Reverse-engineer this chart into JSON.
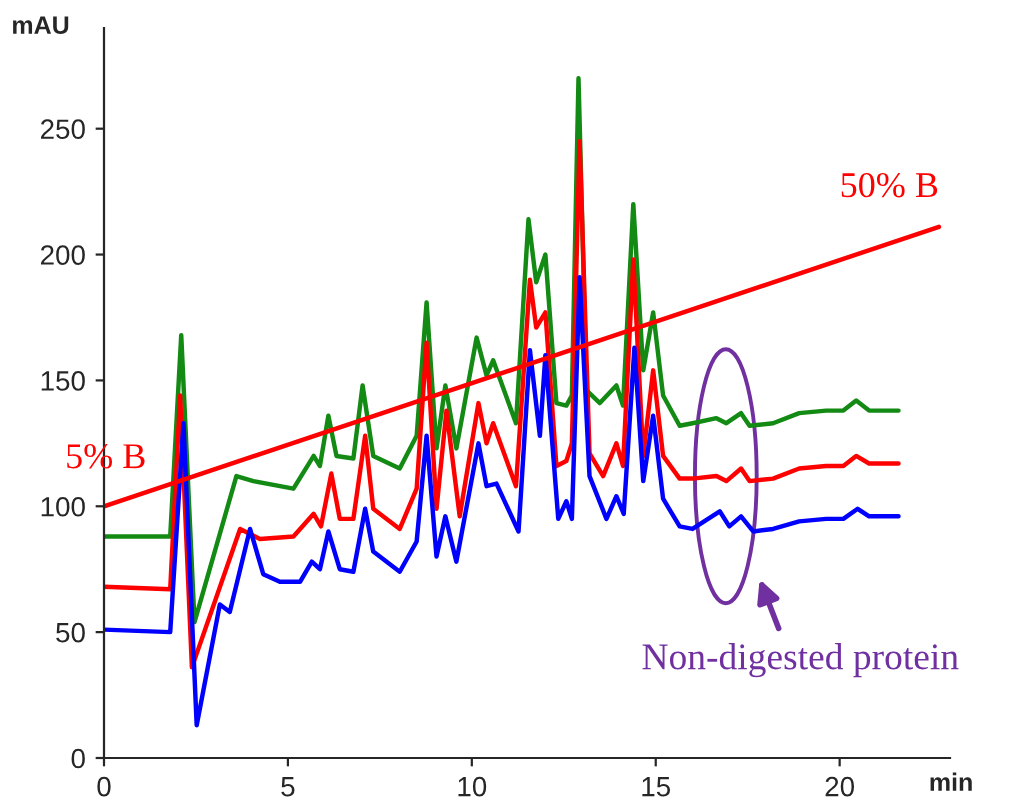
{
  "chart_data": {
    "type": "line",
    "xlabel": "min",
    "ylabel": "mAU",
    "xlim": [
      0,
      23
    ],
    "ylim": [
      0,
      290
    ],
    "xticks": [
      0,
      5,
      10,
      15,
      20
    ],
    "yticks": [
      0,
      50,
      100,
      150,
      200,
      250
    ],
    "series": [
      {
        "color": "#138a13",
        "x": [
          0,
          1.8,
          2.1,
          2.46,
          3.6,
          4.06,
          5.15,
          5.7,
          5.87,
          6.1,
          6.32,
          6.78,
          7.03,
          7.32,
          8.04,
          8.5,
          8.77,
          9.04,
          9.28,
          9.58,
          10.13,
          10.4,
          10.58,
          11.2,
          11.54,
          11.75,
          12.0,
          12.3,
          12.57,
          12.72,
          12.9,
          13.12,
          13.48,
          13.93,
          14.11,
          14.39,
          14.66,
          14.93,
          15.2,
          15.65,
          16.0,
          16.65,
          16.92,
          17.32,
          17.55,
          18.19,
          18.9,
          19.63,
          20.1,
          20.45,
          20.8,
          21.6
        ],
        "values": [
          88,
          88,
          168,
          54,
          112,
          110,
          107,
          120,
          116,
          136,
          120,
          119,
          148,
          120,
          115,
          128,
          181,
          123,
          148,
          123,
          167,
          152,
          158,
          133,
          214,
          189,
          200,
          141,
          140,
          144,
          270,
          146,
          141,
          148,
          140,
          220,
          154,
          177,
          144,
          132,
          133,
          135,
          133,
          137,
          132,
          133,
          137,
          138,
          138,
          142,
          138,
          138
        ]
      },
      {
        "color": "#ff0000",
        "x": [
          0,
          1.8,
          2.07,
          2.39,
          3.7,
          4.24,
          5.15,
          5.7,
          5.9,
          6.18,
          6.41,
          6.78,
          7.1,
          7.32,
          8.04,
          8.5,
          8.77,
          9.04,
          9.31,
          9.67,
          10.18,
          10.4,
          10.58,
          11.2,
          11.58,
          11.75,
          12.0,
          12.3,
          12.57,
          12.72,
          12.93,
          13.2,
          13.57,
          13.93,
          14.11,
          14.39,
          14.66,
          14.93,
          15.2,
          15.65,
          16.0,
          16.65,
          16.92,
          17.32,
          17.55,
          18.19,
          18.9,
          19.63,
          20.1,
          20.45,
          20.8,
          21.6
        ],
        "values": [
          68,
          67,
          144,
          36,
          91,
          87,
          88,
          97,
          92,
          113,
          95,
          95,
          128,
          99,
          91,
          107,
          165,
          99,
          138,
          96,
          141,
          125,
          133,
          108,
          190,
          171,
          177,
          116,
          118,
          125,
          245,
          121,
          112,
          125,
          116,
          198,
          120,
          154,
          120,
          111,
          111,
          112,
          110,
          115,
          110,
          111,
          115,
          116,
          116,
          120,
          117,
          117
        ]
      },
      {
        "color": "#0000ff",
        "x": [
          0,
          1.8,
          2.16,
          2.52,
          3.15,
          3.42,
          3.97,
          4.33,
          4.78,
          5.33,
          5.65,
          5.87,
          6.1,
          6.41,
          6.78,
          7.1,
          7.32,
          8.04,
          8.5,
          8.77,
          9.04,
          9.28,
          9.58,
          10.18,
          10.4,
          10.67,
          11.27,
          11.58,
          11.85,
          12.0,
          12.35,
          12.57,
          12.72,
          12.93,
          13.2,
          13.66,
          13.93,
          14.13,
          14.42,
          14.66,
          14.93,
          15.2,
          15.65,
          16.0,
          16.74,
          17.0,
          17.32,
          17.65,
          18.19,
          18.9,
          19.63,
          20.1,
          20.49,
          20.8,
          21.6
        ],
        "values": [
          51,
          50,
          133,
          13,
          61,
          58,
          91,
          73,
          70,
          70,
          78,
          75,
          90,
          75,
          74,
          99,
          82,
          74,
          86,
          128,
          80,
          96,
          78,
          125,
          108,
          109,
          90,
          162,
          128,
          160,
          95,
          102,
          95,
          191,
          112,
          95,
          104,
          97,
          163,
          110,
          136,
          103,
          92,
          91,
          98,
          92,
          96,
          90,
          91,
          94,
          95,
          95,
          99,
          96,
          96
        ]
      },
      {
        "color": "#ff0000",
        "x": [
          0,
          22.7
        ],
        "values": [
          100,
          211
        ]
      }
    ],
    "annotations": [
      {
        "text": "5% B",
        "x": 0,
        "y": 100
      },
      {
        "text": "50% B",
        "x": 22.7,
        "y": 211
      },
      "Non-digested protein"
    ]
  }
}
